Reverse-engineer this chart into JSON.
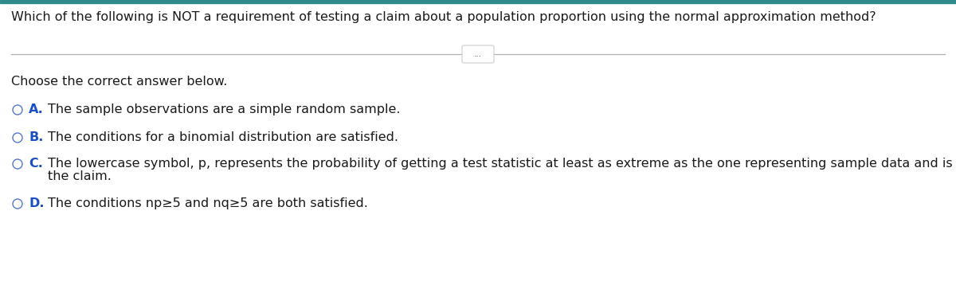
{
  "background_color": "#ffffff",
  "top_bar_color": "#2e8b8b",
  "question": "Which of the following is NOT a requirement of testing a claim about a population proportion using the normal approximation method?",
  "separator_dots": "...",
  "instruction": "Choose the correct answer below.",
  "options": [
    {
      "letter": "A.",
      "text": "The sample observations are a simple random sample."
    },
    {
      "letter": "B.",
      "text": "The conditions for a binomial distribution are satisfied."
    },
    {
      "letter": "C.",
      "text_line1": "The lowercase symbol, p, represents the probability of getting a test statistic at least as extreme as the one representing sample data and is needed to test",
      "text_line2": "the claim."
    },
    {
      "letter": "D.",
      "text": "The conditions np≥5 and nq≥5 are both satisfied."
    }
  ],
  "question_font_size": 11.5,
  "instruction_font_size": 11.5,
  "option_font_size": 11.5,
  "question_color": "#1a1a1a",
  "instruction_color": "#1a1a1a",
  "letter_color": "#1a4fc4",
  "text_color": "#1a1a1a",
  "circle_edge_color": "#5577cc",
  "line_color": "#b0b0b0",
  "top_bar_height": 3,
  "sep_button_color": "#cccccc"
}
